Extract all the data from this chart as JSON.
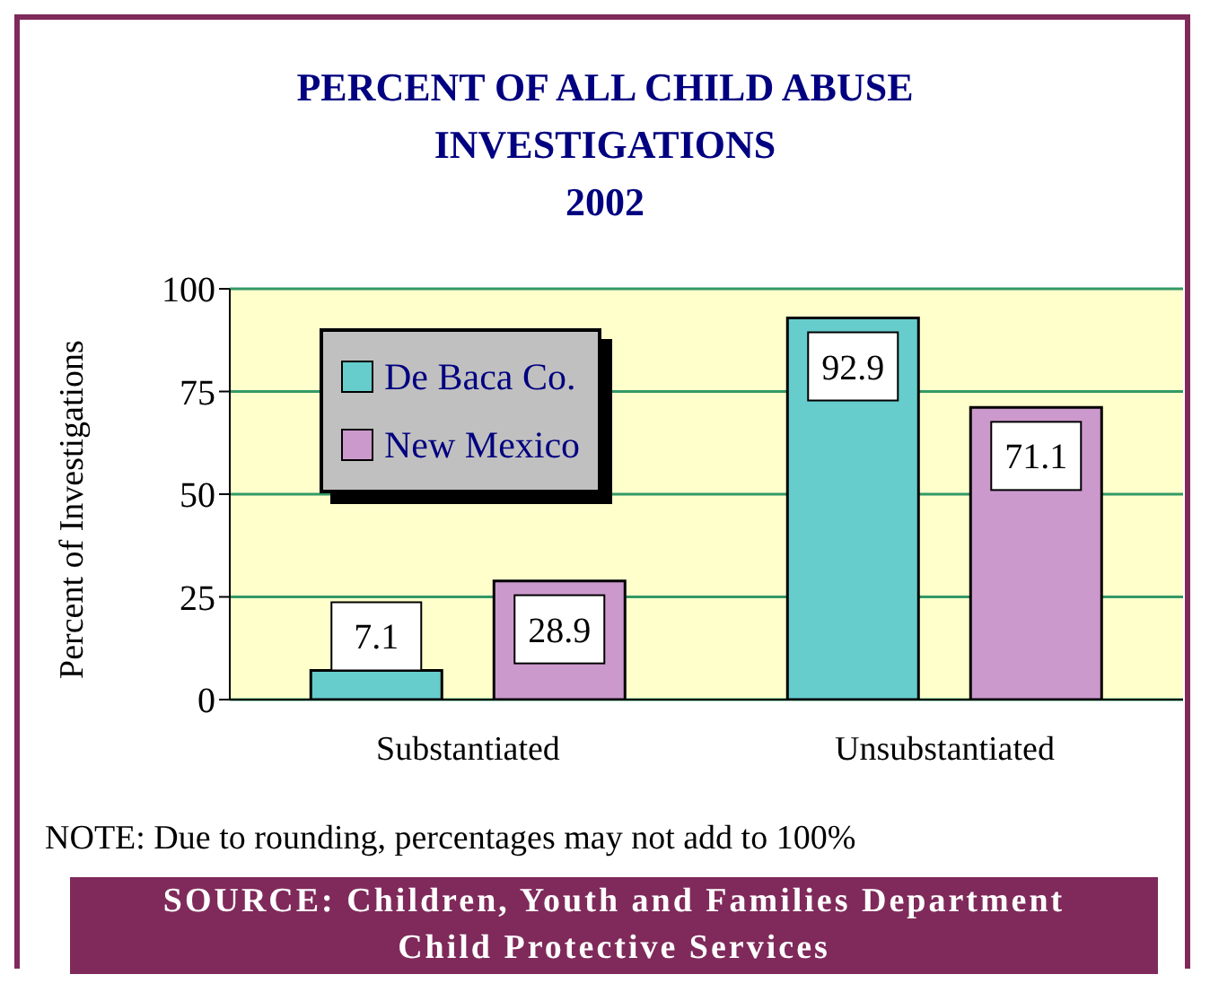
{
  "chart_data": {
    "type": "bar",
    "title": "PERCENT OF ALL CHILD ABUSE\nINVESTIGATIONS\n2002",
    "ylabel": "Percent of Investigations",
    "categories": [
      "Substantiated",
      "Unsubstantiated"
    ],
    "series": [
      {
        "name": "De Baca Co.",
        "color": "#66cccc",
        "values": [
          7.1,
          92.9
        ]
      },
      {
        "name": "New Mexico",
        "color": "#cc99cc",
        "values": [
          28.9,
          71.1
        ]
      }
    ],
    "ylim": [
      0,
      100
    ],
    "yticks": [
      0,
      25,
      50,
      75,
      100
    ],
    "grid": "y",
    "legend": "top left",
    "data_labels": true,
    "annotations": [
      "NOTE: Due to rounding, percentages may not add to 100%",
      "SOURCE:  Children, Youth and Families Department",
      "Child Protective Services"
    ]
  }
}
